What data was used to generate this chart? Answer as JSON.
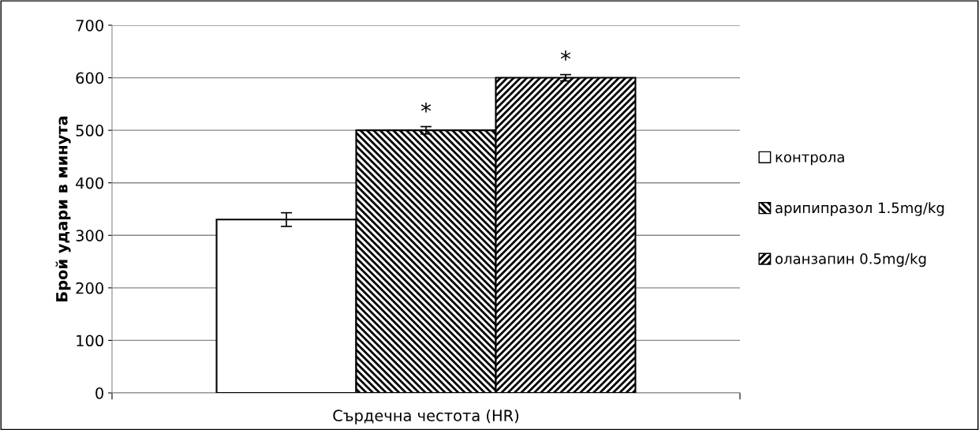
{
  "chart_data": {
    "type": "bar",
    "categories": [
      "Сърдечна честота (HR)"
    ],
    "ylabel": "Брой удари в минута",
    "series": [
      {
        "name": "контрола",
        "color": "#ffffff",
        "values": [
          330
        ],
        "errors": [
          13
        ]
      },
      {
        "name": "арипипразол 1.5mg/kg",
        "color": "#000000",
        "values": [
          500
        ],
        "errors": [
          7
        ]
      },
      {
        "name": "оланзапин 0.5mg/kg",
        "color": "#000000",
        "values": [
          600
        ],
        "errors": [
          6
        ]
      }
    ],
    "annotations": [
      "*",
      "*"
    ],
    "ylim": [
      0,
      700
    ],
    "yticks": [
      0,
      100,
      200,
      300,
      400,
      500,
      600,
      700
    ],
    "grid": "y",
    "legend": "right"
  }
}
